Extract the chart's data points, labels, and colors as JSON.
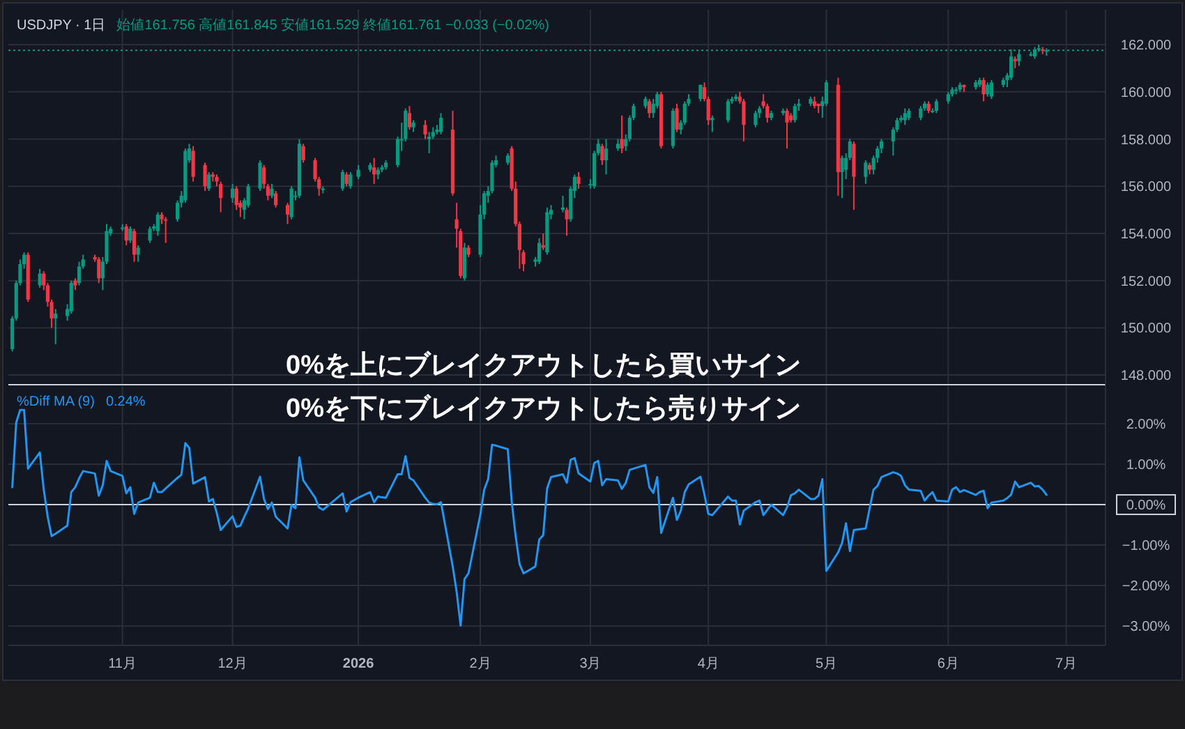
{
  "chart_data": [
    {
      "type": "candlestick",
      "title": "USDJPY · 1日",
      "subtitle": "始値161.756 高値161.845 安値161.529 終値161.761 −0.033 (−0.02%)",
      "annotations": [
        "0%を上にブレイクアウトしたら買いサイン"
      ],
      "xlim": [
        "2025-10-05",
        "2026-07-11"
      ],
      "ylim": [
        147.59,
        163.48
      ],
      "grid": true,
      "tick_labels": "y",
      "xticks": [
        {
          "value": "2025-11-03",
          "label": null
        },
        {
          "value": "2025-12-01",
          "label": null
        },
        {
          "value": "2026-01-02",
          "label": null
        },
        {
          "value": "2026-02-02",
          "label": null
        },
        {
          "value": "2026-03-02",
          "label": null
        },
        {
          "value": "2026-04-01",
          "label": null
        },
        {
          "value": "2026-05-01",
          "label": null
        },
        {
          "value": "2026-06-01",
          "label": null
        },
        {
          "value": "2026-07-01",
          "label": null
        }
      ],
      "yticks": [
        {
          "value": 148,
          "label": "148.000"
        },
        {
          "value": 150,
          "label": "150.000"
        },
        {
          "value": 152,
          "label": "152.000"
        },
        {
          "value": 154,
          "label": "154.000"
        },
        {
          "value": 156,
          "label": "156.000"
        },
        {
          "value": 158,
          "label": "158.000"
        },
        {
          "value": 160,
          "label": "160.000"
        },
        {
          "value": 162,
          "label": "162.000"
        }
      ],
      "ref_lines": [
        {
          "axis": "y",
          "value": 161.761,
          "color": "#089981",
          "line_style": "dotted"
        }
      ],
      "x": [
        "2025-10-06",
        "2025-10-07",
        "2025-10-08",
        "2025-10-09",
        "2025-10-10",
        "2025-10-13",
        "2025-10-14",
        "2025-10-15",
        "2025-10-16",
        "2025-10-17",
        "2025-10-20",
        "2025-10-21",
        "2025-10-22",
        "2025-10-23",
        "2025-10-24",
        "2025-10-27",
        "2025-10-28",
        "2025-10-29",
        "2025-10-30",
        "2025-10-31",
        "2025-11-03",
        "2025-11-04",
        "2025-11-05",
        "2025-11-06",
        "2025-11-07",
        "2025-11-10",
        "2025-11-11",
        "2025-11-12",
        "2025-11-13",
        "2025-11-14",
        "2025-11-17",
        "2025-11-18",
        "2025-11-19",
        "2025-11-20",
        "2025-11-21",
        "2025-11-24",
        "2025-11-25",
        "2025-11-26",
        "2025-11-27",
        "2025-11-28",
        "2025-12-01",
        "2025-12-02",
        "2025-12-03",
        "2025-12-04",
        "2025-12-05",
        "2025-12-08",
        "2025-12-09",
        "2025-12-10",
        "2025-12-11",
        "2025-12-12",
        "2025-12-15",
        "2025-12-16",
        "2025-12-17",
        "2025-12-18",
        "2025-12-19",
        "2025-12-22",
        "2025-12-23",
        "2025-12-24",
        "2025-12-29",
        "2025-12-30",
        "2025-12-31",
        "2026-01-02",
        "2026-01-05",
        "2026-01-06",
        "2026-01-07",
        "2026-01-08",
        "2026-01-09",
        "2026-01-12",
        "2026-01-13",
        "2026-01-14",
        "2026-01-15",
        "2026-01-16",
        "2026-01-19",
        "2026-01-20",
        "2026-01-21",
        "2026-01-22",
        "2026-01-23",
        "2026-01-26",
        "2026-01-27",
        "2026-01-28",
        "2026-01-29",
        "2026-01-30",
        "2026-02-02",
        "2026-02-03",
        "2026-02-04",
        "2026-02-05",
        "2026-02-06",
        "2026-02-09",
        "2026-02-10",
        "2026-02-11",
        "2026-02-12",
        "2026-02-13",
        "2026-02-16",
        "2026-02-17",
        "2026-02-18",
        "2026-02-19",
        "2026-02-20",
        "2026-02-23",
        "2026-02-24",
        "2026-02-25",
        "2026-02-26",
        "2026-02-27",
        "2026-03-02",
        "2026-03-03",
        "2026-03-04",
        "2026-03-05",
        "2026-03-06",
        "2026-03-09",
        "2026-03-10",
        "2026-03-11",
        "2026-03-12",
        "2026-03-13",
        "2026-03-16",
        "2026-03-17",
        "2026-03-18",
        "2026-03-19",
        "2026-03-20",
        "2026-03-23",
        "2026-03-24",
        "2026-03-25",
        "2026-03-26",
        "2026-03-27",
        "2026-03-30",
        "2026-03-31",
        "2026-04-01",
        "2026-04-02",
        "2026-04-06",
        "2026-04-07",
        "2026-04-08",
        "2026-04-09",
        "2026-04-10",
        "2026-04-13",
        "2026-04-14",
        "2026-04-15",
        "2026-04-16",
        "2026-04-17",
        "2026-04-20",
        "2026-04-21",
        "2026-04-22",
        "2026-04-23",
        "2026-04-24",
        "2026-04-27",
        "2026-04-28",
        "2026-04-29",
        "2026-04-30",
        "2026-05-01",
        "2026-05-04",
        "2026-05-05",
        "2026-05-06",
        "2026-05-07",
        "2026-05-08",
        "2026-05-11",
        "2026-05-12",
        "2026-05-13",
        "2026-05-14",
        "2026-05-15",
        "2026-05-18",
        "2026-05-19",
        "2026-05-20",
        "2026-05-21",
        "2026-05-22",
        "2026-05-25",
        "2026-05-26",
        "2026-05-27",
        "2026-05-28",
        "2026-05-29",
        "2026-06-01",
        "2026-06-02",
        "2026-06-03",
        "2026-06-04",
        "2026-06-05",
        "2026-06-08",
        "2026-06-09",
        "2026-06-10",
        "2026-06-11",
        "2026-06-12",
        "2026-06-15",
        "2026-06-16",
        "2026-06-17",
        "2026-06-18",
        "2026-06-19",
        "2026-06-22",
        "2026-06-23",
        "2026-06-24",
        "2026-06-25",
        "2026-06-26"
      ],
      "ohlc": [
        [
          149.1,
          150.5,
          149.0,
          150.4
        ],
        [
          150.4,
          152.0,
          150.3,
          151.9
        ],
        [
          151.9,
          152.9,
          151.8,
          152.7
        ],
        [
          152.7,
          153.2,
          152.5,
          153.1
        ],
        [
          153.1,
          153.2,
          151.1,
          151.2
        ],
        [
          151.8,
          152.5,
          151.7,
          152.3
        ],
        [
          152.3,
          152.4,
          151.6,
          151.8
        ],
        [
          151.8,
          151.9,
          150.9,
          151.1
        ],
        [
          151.1,
          151.2,
          150.0,
          150.4
        ],
        [
          150.4,
          150.8,
          149.3,
          150.6
        ],
        [
          150.5,
          151.0,
          150.3,
          150.8
        ],
        [
          150.7,
          152.0,
          150.6,
          151.9
        ],
        [
          152.0,
          152.1,
          151.6,
          151.8
        ],
        [
          151.9,
          152.8,
          151.8,
          152.6
        ],
        [
          152.6,
          153.1,
          152.5,
          152.9
        ],
        [
          153.0,
          153.1,
          152.8,
          152.9
        ],
        [
          152.9,
          153.0,
          151.9,
          152.1
        ],
        [
          152.1,
          153.0,
          151.6,
          152.8
        ],
        [
          152.8,
          154.4,
          152.7,
          154.1
        ],
        [
          154.0,
          154.3,
          153.9,
          154.2
        ],
        [
          154.2,
          154.4,
          154.1,
          154.25
        ],
        [
          154.3,
          154.4,
          153.5,
          153.7
        ],
        [
          153.7,
          154.3,
          153.6,
          154.2
        ],
        [
          154.1,
          154.2,
          152.8,
          153.1
        ],
        [
          153.1,
          153.5,
          152.8,
          153.4
        ],
        [
          153.7,
          154.3,
          153.6,
          154.2
        ],
        [
          154.2,
          154.4,
          154.1,
          154.3
        ],
        [
          154.1,
          154.9,
          153.9,
          154.8
        ],
        [
          154.8,
          154.9,
          154.4,
          154.6
        ],
        [
          154.6,
          154.7,
          153.6,
          154.55
        ],
        [
          154.6,
          155.4,
          154.5,
          155.3
        ],
        [
          155.3,
          155.8,
          155.1,
          155.6
        ],
        [
          155.4,
          157.6,
          155.3,
          157.5
        ],
        [
          157.1,
          157.8,
          157.0,
          157.6
        ],
        [
          157.5,
          157.7,
          156.2,
          156.4
        ],
        [
          156.9,
          157.0,
          155.8,
          156.0
        ],
        [
          155.9,
          156.6,
          155.8,
          156.5
        ],
        [
          156.5,
          156.6,
          156.2,
          156.4
        ],
        [
          156.4,
          156.5,
          156.0,
          156.2
        ],
        [
          156.1,
          156.2,
          154.9,
          155.5
        ],
        [
          155.5,
          156.1,
          155.3,
          155.9
        ],
        [
          155.9,
          156.0,
          155.0,
          155.2
        ],
        [
          155.3,
          155.4,
          154.7,
          155.1
        ],
        [
          155.0,
          155.5,
          154.6,
          155.4
        ],
        [
          155.2,
          156.1,
          155.1,
          156.0
        ],
        [
          155.9,
          157.1,
          155.8,
          157.0
        ],
        [
          156.8,
          156.9,
          155.9,
          156.1
        ],
        [
          156.0,
          156.1,
          155.4,
          155.6
        ],
        [
          155.6,
          156.1,
          155.5,
          155.9
        ],
        [
          155.7,
          155.8,
          155.1,
          155.2
        ],
        [
          155.2,
          155.3,
          154.4,
          154.8
        ],
        [
          154.7,
          156.0,
          154.6,
          155.9
        ],
        [
          155.6,
          155.8,
          155.4,
          155.6
        ],
        [
          155.6,
          158.0,
          155.5,
          157.8
        ],
        [
          157.7,
          157.8,
          157.0,
          157.1
        ],
        [
          157.1,
          157.2,
          156.2,
          156.3
        ],
        [
          156.3,
          156.4,
          155.6,
          155.9
        ],
        [
          155.9,
          156.0,
          155.7,
          155.9
        ],
        [
          155.9,
          156.7,
          155.8,
          156.6
        ],
        [
          156.5,
          156.6,
          156.0,
          156.1
        ],
        [
          156.0,
          156.6,
          155.9,
          156.5
        ],
        [
          156.4,
          156.9,
          156.3,
          156.7
        ],
        [
          156.7,
          157.0,
          156.6,
          156.9
        ],
        [
          156.8,
          157.2,
          156.1,
          156.5
        ],
        [
          156.5,
          156.8,
          156.3,
          156.7
        ],
        [
          156.7,
          156.9,
          156.6,
          156.8
        ],
        [
          156.8,
          157.1,
          156.7,
          157.0
        ],
        [
          156.9,
          158.1,
          156.8,
          158.0
        ],
        [
          158.0,
          158.7,
          157.5,
          158.0
        ],
        [
          158.0,
          159.3,
          157.9,
          159.2
        ],
        [
          159.1,
          159.4,
          158.4,
          158.5
        ],
        [
          158.5,
          158.8,
          158.3,
          158.7
        ],
        [
          158.6,
          158.8,
          158.0,
          158.2
        ],
        [
          158.0,
          158.3,
          157.4,
          158.1
        ],
        [
          158.1,
          158.5,
          158.0,
          158.3
        ],
        [
          158.3,
          158.6,
          158.2,
          158.4
        ],
        [
          158.3,
          159.1,
          158.2,
          158.9
        ],
        [
          158.4,
          159.2,
          155.6,
          155.7
        ],
        [
          154.6,
          155.3,
          153.4,
          154.2
        ],
        [
          154.1,
          154.2,
          152.1,
          152.2
        ],
        [
          152.1,
          153.6,
          152.0,
          153.4
        ],
        [
          153.4,
          153.5,
          153.0,
          153.1
        ],
        [
          153.1,
          155.2,
          153.0,
          154.8
        ],
        [
          154.8,
          155.8,
          154.6,
          155.7
        ],
        [
          155.6,
          156.0,
          155.3,
          155.8
        ],
        [
          155.8,
          157.1,
          155.7,
          157.0
        ],
        [
          156.9,
          157.3,
          156.8,
          157.1
        ],
        [
          157.0,
          157.4,
          156.9,
          157.3
        ],
        [
          157.6,
          157.7,
          155.8,
          155.9
        ],
        [
          155.9,
          156.2,
          154.3,
          154.4
        ],
        [
          154.4,
          154.5,
          152.5,
          153.3
        ],
        [
          153.2,
          153.3,
          152.4,
          152.7
        ],
        [
          152.8,
          153.0,
          152.6,
          152.9
        ],
        [
          152.8,
          153.8,
          152.7,
          153.6
        ],
        [
          153.5,
          154.0,
          153.3,
          153.4
        ],
        [
          153.2,
          155.1,
          153.1,
          154.9
        ],
        [
          154.8,
          155.2,
          154.6,
          155.0
        ],
        [
          155.0,
          155.6,
          154.9,
          155.1
        ],
        [
          155.0,
          155.1,
          153.9,
          154.6
        ],
        [
          154.6,
          156.0,
          154.5,
          155.9
        ],
        [
          155.8,
          156.5,
          155.5,
          156.4
        ],
        [
          156.4,
          156.6,
          155.9,
          156.1
        ],
        [
          156.1,
          156.3,
          155.9,
          156.1
        ],
        [
          156.0,
          157.5,
          155.9,
          157.4
        ],
        [
          157.4,
          158.0,
          157.3,
          157.8
        ],
        [
          157.7,
          157.8,
          156.9,
          157.1
        ],
        [
          157.1,
          158.0,
          156.5,
          157.6
        ],
        [
          157.6,
          158.0,
          157.5,
          157.8
        ],
        [
          158.0,
          159.0,
          157.4,
          157.6
        ],
        [
          157.7,
          158.2,
          157.5,
          158.0
        ],
        [
          158.0,
          159.0,
          157.9,
          158.9
        ],
        [
          158.9,
          159.5,
          158.8,
          159.4
        ],
        [
          159.4,
          159.8,
          159.3,
          159.7
        ],
        [
          159.6,
          159.7,
          158.9,
          159.1
        ],
        [
          159.1,
          159.7,
          158.9,
          159.5
        ],
        [
          159.4,
          160.0,
          159.3,
          159.9
        ],
        [
          159.9,
          160.0,
          157.6,
          157.7
        ],
        [
          157.7,
          159.3,
          157.6,
          159.2
        ],
        [
          159.3,
          159.5,
          158.3,
          158.4
        ],
        [
          158.4,
          158.8,
          158.2,
          158.7
        ],
        [
          158.7,
          159.6,
          158.6,
          159.5
        ],
        [
          159.5,
          159.9,
          159.4,
          159.7
        ],
        [
          159.7,
          160.3,
          159.6,
          160.3
        ],
        [
          160.2,
          160.4,
          159.6,
          159.7
        ],
        [
          159.7,
          159.8,
          158.6,
          158.8
        ],
        [
          158.8,
          159.0,
          158.3,
          158.9
        ],
        [
          158.8,
          159.7,
          158.7,
          159.6
        ],
        [
          159.6,
          159.8,
          159.5,
          159.7
        ],
        [
          159.7,
          159.9,
          159.6,
          159.8
        ],
        [
          159.8,
          160.0,
          159.5,
          159.6
        ],
        [
          159.6,
          159.7,
          157.9,
          158.6
        ],
        [
          158.6,
          159.2,
          158.5,
          159.1
        ],
        [
          159.1,
          159.4,
          158.9,
          159.3
        ],
        [
          159.6,
          159.9,
          159.3,
          159.4
        ],
        [
          159.4,
          159.5,
          158.7,
          158.9
        ],
        [
          158.9,
          159.2,
          158.8,
          159.1
        ],
        [
          159.1,
          159.3,
          159.0,
          159.2
        ],
        [
          159.2,
          159.3,
          157.6,
          158.7
        ],
        [
          159.0,
          159.1,
          158.7,
          158.8
        ],
        [
          158.8,
          159.5,
          158.7,
          159.4
        ],
        [
          159.4,
          159.7,
          159.2,
          159.5
        ],
        [
          159.5,
          159.8,
          159.4,
          159.7
        ],
        [
          159.6,
          159.8,
          159.3,
          159.4
        ],
        [
          159.5,
          159.5,
          159.1,
          159.4
        ],
        [
          159.4,
          159.8,
          158.9,
          159.6
        ],
        [
          159.5,
          160.5,
          159.4,
          160.4
        ],
        [
          160.3,
          160.6,
          155.6,
          156.6
        ],
        [
          156.6,
          157.3,
          155.5,
          157.2
        ],
        [
          156.7,
          157.4,
          156.3,
          157.2
        ],
        [
          157.2,
          158.0,
          157.1,
          157.9
        ],
        [
          157.8,
          157.9,
          155.0,
          156.4
        ],
        [
          156.4,
          157.1,
          156.1,
          157.0
        ],
        [
          156.9,
          157.0,
          156.5,
          156.7
        ],
        [
          156.7,
          157.3,
          156.5,
          157.2
        ],
        [
          157.2,
          157.7,
          157.0,
          157.6
        ],
        [
          157.6,
          158.0,
          157.4,
          157.9
        ],
        [
          157.9,
          158.5,
          157.3,
          158.4
        ],
        [
          158.4,
          158.9,
          158.3,
          158.8
        ],
        [
          158.8,
          159.0,
          158.7,
          158.9
        ],
        [
          158.8,
          159.3,
          158.6,
          159.1
        ],
        [
          158.9,
          159.3,
          158.8,
          159.2
        ],
        [
          158.9,
          159.4,
          158.8,
          159.3
        ],
        [
          159.3,
          159.6,
          159.2,
          159.5
        ],
        [
          159.5,
          159.6,
          159.1,
          159.2
        ],
        [
          159.2,
          159.3,
          159.1,
          159.2
        ],
        [
          159.2,
          159.7,
          159.1,
          159.6
        ],
        [
          159.6,
          160.0,
          159.5,
          159.9
        ],
        [
          159.9,
          160.2,
          159.8,
          160.1
        ],
        [
          160.1,
          160.2,
          159.9,
          160.1
        ],
        [
          160.1,
          160.4,
          160.0,
          160.3
        ],
        [
          160.3,
          160.3,
          160.0,
          160.2
        ],
        [
          160.2,
          160.5,
          160.1,
          160.4
        ],
        [
          160.3,
          160.6,
          160.2,
          160.5
        ],
        [
          160.5,
          160.6,
          159.6,
          159.9
        ],
        [
          159.9,
          160.4,
          159.8,
          160.3
        ],
        [
          159.8,
          160.5,
          159.7,
          160.4
        ],
        [
          160.3,
          160.6,
          160.2,
          160.5
        ],
        [
          160.5,
          160.8,
          160.2,
          160.7
        ],
        [
          160.6,
          161.8,
          160.5,
          161.5
        ],
        [
          161.4,
          161.5,
          161.0,
          161.3
        ],
        [
          161.3,
          161.8,
          161.1,
          161.6
        ],
        [
          161.6,
          161.7,
          161.5,
          161.6
        ],
        [
          161.5,
          161.9,
          161.4,
          161.8
        ],
        [
          161.8,
          162.0,
          161.7,
          161.85
        ],
        [
          161.8,
          161.9,
          161.6,
          161.75
        ],
        [
          161.756,
          161.845,
          161.529,
          161.761
        ]
      ]
    },
    {
      "type": "line",
      "legend": "top left",
      "annotations": [
        "0%を下にブレイクアウトしたら売りサイン",
        "0.24%"
      ],
      "xlim": [
        "2025-10-05",
        "2026-07-11"
      ],
      "ylim": [
        -3.48,
        2.93
      ],
      "grid": true,
      "xticks": [
        {
          "value": "2025-11-03",
          "label": "11月"
        },
        {
          "value": "2025-12-01",
          "label": "12月"
        },
        {
          "value": "2026-01-02",
          "label": "2026"
        },
        {
          "value": "2026-02-02",
          "label": "2月"
        },
        {
          "value": "2026-03-02",
          "label": "3月"
        },
        {
          "value": "2026-04-01",
          "label": "4月"
        },
        {
          "value": "2026-05-01",
          "label": "5月"
        },
        {
          "value": "2026-06-01",
          "label": "6月"
        },
        {
          "value": "2026-07-01",
          "label": "7月"
        }
      ],
      "yticks": [
        {
          "value": -3,
          "label": "−3.00%"
        },
        {
          "value": -2,
          "label": "−2.00%"
        },
        {
          "value": -1,
          "label": "−1.00%"
        },
        {
          "value": 1,
          "label": "1.00%"
        },
        {
          "value": 2,
          "label": "2.00%"
        }
      ],
      "ref_lines": [
        {
          "axis": "y",
          "value": 0,
          "label": "0.00%",
          "color": "#d1d4dc"
        }
      ],
      "x": [
        "2025-10-06",
        "2025-10-07",
        "2025-10-08",
        "2025-10-09",
        "2025-10-10",
        "2025-10-13",
        "2025-10-14",
        "2025-10-15",
        "2025-10-16",
        "2025-10-17",
        "2025-10-20",
        "2025-10-21",
        "2025-10-22",
        "2025-10-23",
        "2025-10-24",
        "2025-10-27",
        "2025-10-28",
        "2025-10-29",
        "2025-10-30",
        "2025-10-31",
        "2025-11-03",
        "2025-11-04",
        "2025-11-05",
        "2025-11-06",
        "2025-11-07",
        "2025-11-10",
        "2025-11-11",
        "2025-11-12",
        "2025-11-13",
        "2025-11-14",
        "2025-11-17",
        "2025-11-18",
        "2025-11-19",
        "2025-11-20",
        "2025-11-21",
        "2025-11-24",
        "2025-11-25",
        "2025-11-26",
        "2025-11-27",
        "2025-11-28",
        "2025-12-01",
        "2025-12-02",
        "2025-12-03",
        "2025-12-04",
        "2025-12-05",
        "2025-12-08",
        "2025-12-09",
        "2025-12-10",
        "2025-12-11",
        "2025-12-12",
        "2025-12-15",
        "2025-12-16",
        "2025-12-17",
        "2025-12-18",
        "2025-12-19",
        "2025-12-22",
        "2025-12-23",
        "2025-12-24",
        "2025-12-29",
        "2025-12-30",
        "2025-12-31",
        "2026-01-02",
        "2026-01-05",
        "2026-01-06",
        "2026-01-07",
        "2026-01-08",
        "2026-01-09",
        "2026-01-12",
        "2026-01-13",
        "2026-01-14",
        "2026-01-15",
        "2026-01-16",
        "2026-01-19",
        "2026-01-20",
        "2026-01-21",
        "2026-01-22",
        "2026-01-23",
        "2026-01-26",
        "2026-01-27",
        "2026-01-28",
        "2026-01-29",
        "2026-01-30",
        "2026-02-02",
        "2026-02-03",
        "2026-02-04",
        "2026-02-05",
        "2026-02-06",
        "2026-02-09",
        "2026-02-10",
        "2026-02-11",
        "2026-02-12",
        "2026-02-13",
        "2026-02-16",
        "2026-02-17",
        "2026-02-18",
        "2026-02-19",
        "2026-02-20",
        "2026-02-23",
        "2026-02-24",
        "2026-02-25",
        "2026-02-26",
        "2026-02-27",
        "2026-03-02",
        "2026-03-03",
        "2026-03-04",
        "2026-03-05",
        "2026-03-06",
        "2026-03-09",
        "2026-03-10",
        "2026-03-11",
        "2026-03-12",
        "2026-03-13",
        "2026-03-16",
        "2026-03-17",
        "2026-03-18",
        "2026-03-19",
        "2026-03-20",
        "2026-03-23",
        "2026-03-24",
        "2026-03-25",
        "2026-03-26",
        "2026-03-27",
        "2026-03-30",
        "2026-03-31",
        "2026-04-01",
        "2026-04-02",
        "2026-04-06",
        "2026-04-07",
        "2026-04-08",
        "2026-04-09",
        "2026-04-10",
        "2026-04-13",
        "2026-04-14",
        "2026-04-15",
        "2026-04-16",
        "2026-04-17",
        "2026-04-20",
        "2026-04-21",
        "2026-04-22",
        "2026-04-23",
        "2026-04-24",
        "2026-04-27",
        "2026-04-28",
        "2026-04-29",
        "2026-04-30",
        "2026-05-01",
        "2026-05-04",
        "2026-05-05",
        "2026-05-06",
        "2026-05-07",
        "2026-05-08",
        "2026-05-11",
        "2026-05-12",
        "2026-05-13",
        "2026-05-14",
        "2026-05-15",
        "2026-05-18",
        "2026-05-19",
        "2026-05-20",
        "2026-05-21",
        "2026-05-22",
        "2026-05-25",
        "2026-05-26",
        "2026-05-27",
        "2026-05-28",
        "2026-05-29",
        "2026-06-01",
        "2026-06-02",
        "2026-06-03",
        "2026-06-04",
        "2026-06-05",
        "2026-06-08",
        "2026-06-09",
        "2026-06-10",
        "2026-06-11",
        "2026-06-12",
        "2026-06-15",
        "2026-06-16",
        "2026-06-17",
        "2026-06-18",
        "2026-06-19",
        "2026-06-22",
        "2026-06-23",
        "2026-06-24",
        "2026-06-25",
        "2026-06-26"
      ],
      "series": [
        {
          "name": "%Diff MA (9)",
          "color": "#2196f3",
          "values": [
            0.43,
            2.03,
            2.34,
            2.34,
            0.89,
            1.29,
            0.37,
            -0.3,
            -0.78,
            -0.72,
            -0.52,
            0.31,
            0.43,
            0.65,
            0.83,
            0.77,
            0.22,
            0.48,
            1.08,
            0.83,
            0.71,
            0.28,
            0.43,
            -0.23,
            0.05,
            0.17,
            0.54,
            0.31,
            0.31,
            0.4,
            0.66,
            0.74,
            1.52,
            1.4,
            0.52,
            0.68,
            0.08,
            0.14,
            -0.21,
            -0.63,
            -0.29,
            -0.55,
            -0.52,
            -0.3,
            -0.09,
            0.69,
            0.14,
            -0.11,
            0.05,
            -0.3,
            -0.59,
            -0.01,
            -0.09,
            1.17,
            0.6,
            0.17,
            -0.07,
            -0.13,
            0.28,
            -0.17,
            0.06,
            0.17,
            0.31,
            0.06,
            0.2,
            0.18,
            0.17,
            0.75,
            0.75,
            1.2,
            0.66,
            0.6,
            0.17,
            0.05,
            0.02,
            0.01,
            0.06,
            -1.53,
            -2.16,
            -2.99,
            -1.84,
            -1.7,
            -0.26,
            0.37,
            0.63,
            1.48,
            1.46,
            1.37,
            0.08,
            -0.78,
            -1.47,
            -1.7,
            -1.53,
            -0.86,
            -0.76,
            0.4,
            0.68,
            0.75,
            0.54,
            1.11,
            1.15,
            0.77,
            0.57,
            1.03,
            1.08,
            0.48,
            0.63,
            0.6,
            0.39,
            0.54,
            0.86,
            0.89,
            0.98,
            0.43,
            0.29,
            0.68,
            -0.7,
            0.17,
            -0.38,
            -0.15,
            0.31,
            0.5,
            0.69,
            0.25,
            -0.23,
            -0.26,
            0.2,
            0.1,
            0.1,
            -0.49,
            -0.15,
            0.06,
            0.1,
            -0.26,
            -0.13,
            0,
            -0.26,
            -0.07,
            0.23,
            0.28,
            0.37,
            0.14,
            0.14,
            0.22,
            0.63,
            -1.64,
            -1.18,
            -0.95,
            -0.46,
            -1.15,
            -0.63,
            -0.59,
            -0.1,
            0.37,
            0.46,
            0.68,
            0.8,
            0.77,
            0.71,
            0.48,
            0.37,
            0.34,
            0.1,
            0.22,
            0.31,
            0.1,
            0.08,
            0.37,
            0.43,
            0.31,
            0.36,
            0.24,
            0.31,
            0.34,
            -0.09,
            0.05,
            0.1,
            0.16,
            0.25,
            0.57,
            0.43,
            0.54,
            0.45,
            0.46,
            0.37,
            0.24
          ]
        }
      ]
    }
  ]
}
